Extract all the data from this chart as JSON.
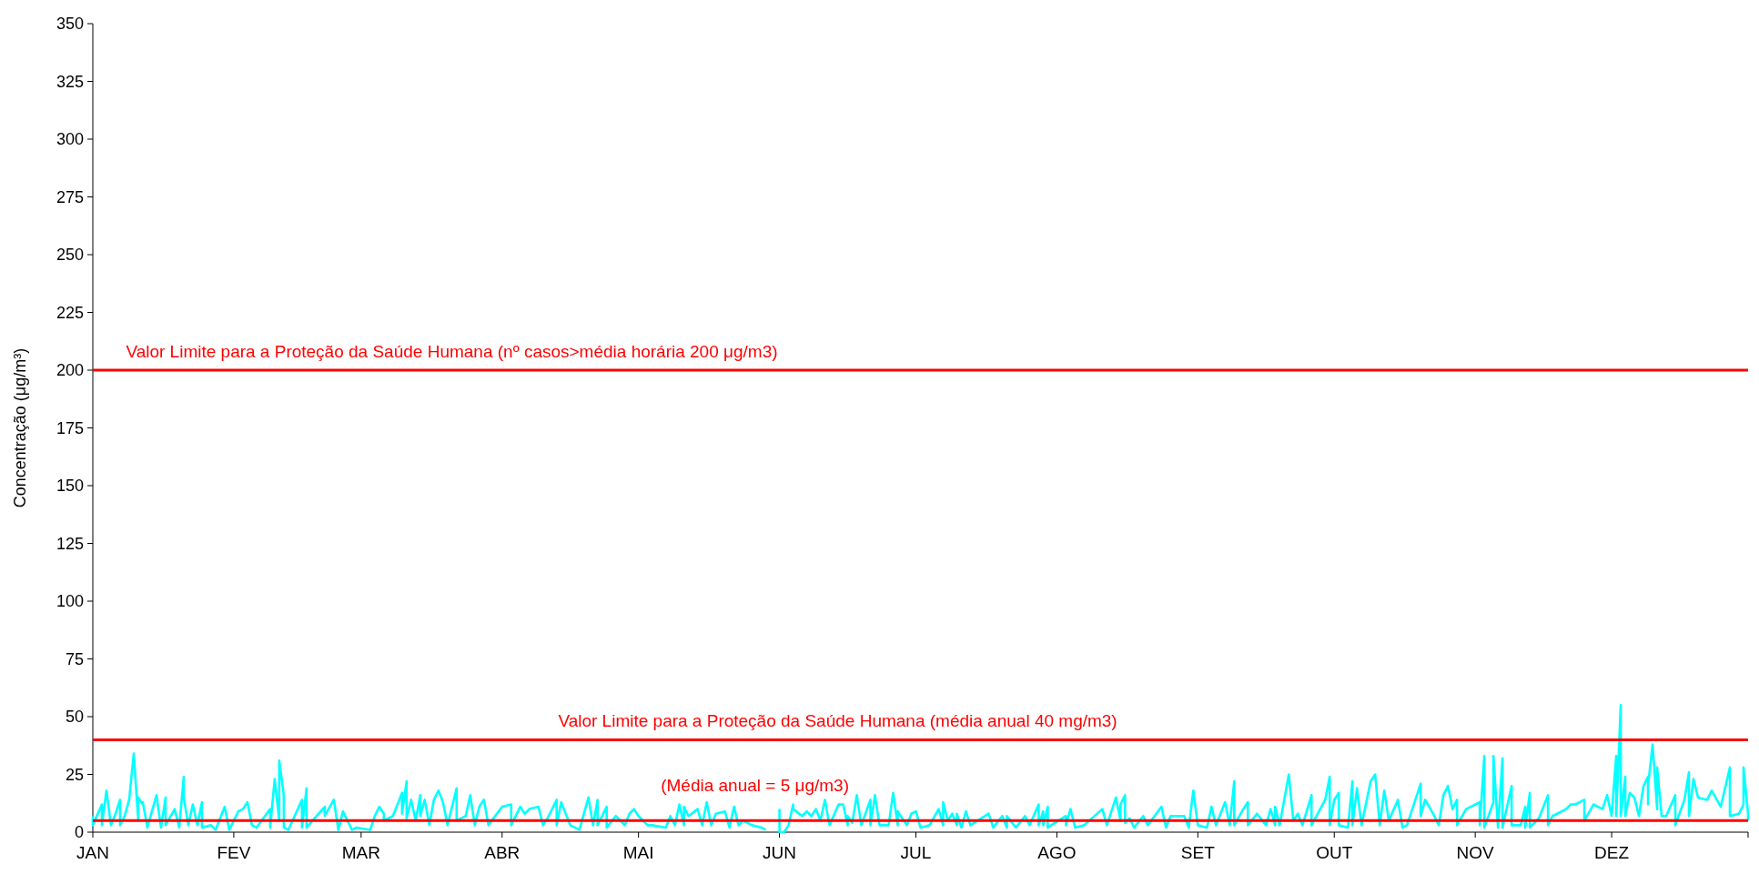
{
  "chart_data": {
    "type": "line",
    "ylabel": "Concentração (μg/m³)",
    "xlim": [
      "--01-01",
      "--12-31"
    ],
    "ylim": [
      0,
      350
    ],
    "xticks": [
      {
        "value": "--01-01",
        "label": "JAN"
      },
      {
        "value": "--02-01",
        "label": "FEV"
      },
      {
        "value": "--03-01",
        "label": "MAR"
      },
      {
        "value": "--04-01",
        "label": "ABR"
      },
      {
        "value": "--05-01",
        "label": "MAI"
      },
      {
        "value": "--06-01",
        "label": "JUN"
      },
      {
        "value": "--07-01",
        "label": "JUL"
      },
      {
        "value": "--08-01",
        "label": "AGO"
      },
      {
        "value": "--09-01",
        "label": "SET"
      },
      {
        "value": "--10-01",
        "label": "OUT"
      },
      {
        "value": "--11-01",
        "label": "NOV"
      },
      {
        "value": "--12-01",
        "label": "DEZ"
      },
      {
        "value": "--12-31",
        "label": null
      }
    ],
    "yticks": [
      0,
      25,
      50,
      75,
      100,
      125,
      150,
      175,
      200,
      225,
      250,
      275,
      300,
      325,
      350
    ],
    "grid": false,
    "marker": "none",
    "line_style": "solid",
    "series": [
      {
        "color": "#00ffff",
        "x": [
          "--01-01",
          "--01-01",
          "--01-03",
          "--01-03",
          "--01-04",
          "--01-05",
          "--01-06",
          "--01-07",
          "--01-07",
          "--01-08",
          "--01-09",
          "--01-10",
          "--01-11",
          "--01-11",
          "--01-12",
          "--01-12",
          "--01-13",
          "--01-15",
          "--01-16",
          "--01-17",
          "--01-17",
          "--01-19",
          "--01-20",
          "--01-21",
          "--01-21",
          "--01-22",
          "--01-23",
          "--01-24",
          "--01-25",
          "--01-25",
          "--01-27",
          "--01-28",
          "--01-30",
          "--01-31",
          "--02-02",
          "--02-03",
          "--02-04",
          "--02-05",
          "--02-06",
          "--02-09",
          "--02-09",
          "--02-10",
          "--02-11",
          "--02-11",
          "--02-12",
          "--02-12",
          "--02-13",
          "--02-16",
          "--02-16",
          "--02-17",
          "--02-17",
          "--02-21",
          "--02-21",
          "--02-23",
          "--02-24",
          "--02-25",
          "--02-27",
          "--02-28",
          "--03-03",
          "--03-04",
          "--03-05",
          "--03-06",
          "--03-06",
          "--03-08",
          "--03-09",
          "--03-10",
          "--03-10",
          "--03-11",
          "--03-11",
          "--03-12",
          "--03-13",
          "--03-14",
          "--03-14",
          "--03-15",
          "--03-16",
          "--03-17",
          "--03-18",
          "--03-19",
          "--03-20",
          "--03-22",
          "--03-22",
          "--03-24",
          "--03-25",
          "--03-26",
          "--03-27",
          "--03-28",
          "--03-29",
          "--04-01",
          "--04-03",
          "--04-03",
          "--04-05",
          "--04-06",
          "--04-07",
          "--04-09",
          "--04-10",
          "--04-11",
          "--04-13",
          "--04-13",
          "--04-14",
          "--04-16",
          "--04-18",
          "--04-20",
          "--04-21",
          "--04-22",
          "--04-22",
          "--04-24",
          "--04-24",
          "--04-26",
          "--04-28",
          "--04-29",
          "--04-30",
          "--05-01",
          "--05-03",
          "--05-04",
          "--05-07",
          "--05-08",
          "--05-09",
          "--05-10",
          "--05-11",
          "--05-11",
          "--05-12",
          "--05-14",
          "--05-15",
          "--05-16",
          "--05-17",
          "--05-18",
          "--05-20",
          "--05-21",
          "--05-22",
          "--05-23",
          "--05-24",
          "--05-26",
          "--05-28",
          "--05-29",
          "--05-30",
          "--06-01",
          "--06-01",
          "--06-02",
          "--06-03",
          "--06-04",
          "--06-04",
          "--06-06",
          "--06-07",
          "--06-08",
          "--06-09",
          "--06-10",
          "--06-11",
          "--06-12",
          "--06-14",
          "--06-15",
          "--06-16",
          "--06-16",
          "--06-17",
          "--06-18",
          "--06-19",
          "--06-21",
          "--06-21",
          "--06-22",
          "--06-23",
          "--06-25",
          "--06-26",
          "--06-27",
          "--06-27",
          "--06-29",
          "--06-30",
          "--07-01",
          "--07-02",
          "--07-04",
          "--07-06",
          "--07-07",
          "--07-07",
          "--07-08",
          "--07-09",
          "--07-10",
          "--07-10",
          "--07-11",
          "--07-12",
          "--07-13",
          "--07-17",
          "--07-18",
          "--07-20",
          "--07-21",
          "--07-21",
          "--07-23",
          "--07-25",
          "--07-26",
          "--07-28",
          "--07-28",
          "--07-29",
          "--07-29",
          "--07-30",
          "--07-30",
          "--08-03",
          "--08-03",
          "--08-04",
          "--08-05",
          "--08-07",
          "--08-11",
          "--08-12",
          "--08-14",
          "--08-15",
          "--08-15",
          "--08-16",
          "--08-16",
          "--08-17",
          "--08-18",
          "--08-20",
          "--08-21",
          "--08-24",
          "--08-25",
          "--08-26",
          "--08-29",
          "--08-30",
          "--08-31",
          "--09-01",
          "--09-03",
          "--09-04",
          "--09-05",
          "--09-07",
          "--09-08",
          "--09-09",
          "--09-09",
          "--09-11",
          "--09-12",
          "--09-12",
          "--09-14",
          "--09-16",
          "--09-17",
          "--09-18",
          "--09-18",
          "--09-19",
          "--09-21",
          "--09-22",
          "--09-23",
          "--09-24",
          "--09-26",
          "--09-26",
          "--09-29",
          "--09-30",
          "--09-30",
          "--10-01",
          "--10-02",
          "--10-02",
          "--10-04",
          "--10-05",
          "--10-05",
          "--10-06",
          "--10-07",
          "--10-09",
          "--10-10",
          "--10-11",
          "--10-12",
          "--10-13",
          "--10-15",
          "--10-16",
          "--10-17",
          "--10-20",
          "--10-20",
          "--10-21",
          "--10-23",
          "--10-24",
          "--10-25",
          "--10-26",
          "--10-27",
          "--10-28",
          "--10-28",
          "--10-30",
          "--10-31",
          "--11-02",
          "--11-02",
          "--11-03",
          "--11-03",
          "--11-05",
          "--11-05",
          "--11-06",
          "--11-07",
          "--11-07",
          "--11-09",
          "--11-09",
          "--11-11",
          "--11-12",
          "--11-12",
          "--11-13",
          "--11-13",
          "--11-15",
          "--11-17",
          "--11-17",
          "--11-18",
          "--11-21",
          "--11-22",
          "--11-23",
          "--11-25",
          "--11-25",
          "--11-27",
          "--11-29",
          "--11-30",
          "--12-01",
          "--12-02",
          "--12-02",
          "--12-03",
          "--12-03",
          "--12-04",
          "--12-04",
          "--12-05",
          "--12-06",
          "--12-07",
          "--12-08",
          "--12-09",
          "--12-09",
          "--12-09",
          "--12-10",
          "--12-11",
          "--12-11",
          "--12-12",
          "--12-13",
          "--12-15",
          "--12-15",
          "--12-17",
          "--12-18",
          "--12-18",
          "--12-19",
          "--12-20",
          "--12-22",
          "--12-23",
          "--12-25",
          "--12-27",
          "--12-27",
          "--12-29",
          "--12-30",
          "--12-30",
          "--12-31",
          "--12-31"
        ],
        "values": [
          7,
          3,
          12,
          3,
          18,
          3,
          8,
          14,
          3,
          7,
          14,
          34,
          5,
          15,
          12,
          13,
          2,
          16,
          2,
          15,
          3,
          10,
          2,
          24,
          15,
          3,
          12,
          3,
          13,
          2,
          3,
          1,
          11,
          1,
          9,
          10,
          13,
          3,
          2,
          10,
          2,
          23,
          5,
          31,
          16,
          2,
          1,
          14,
          2,
          19,
          2,
          11,
          7,
          14,
          1,
          9,
          1,
          2,
          1,
          7,
          11,
          8,
          5,
          7,
          12,
          17,
          8,
          22,
          6,
          14,
          5,
          16,
          7,
          14,
          3,
          14,
          18,
          13,
          3,
          19,
          5,
          7,
          16,
          3,
          11,
          14,
          3,
          11,
          12,
          3,
          11,
          8,
          10,
          11,
          3,
          6,
          14,
          3,
          13,
          3,
          1,
          15,
          3,
          14,
          3,
          11,
          2,
          7,
          3,
          8,
          10,
          7,
          3,
          3,
          2,
          7,
          3,
          12,
          3,
          11,
          7,
          10,
          3,
          13,
          3,
          8,
          9,
          2,
          11,
          3,
          5,
          3,
          2,
          1,
          null,
          10,
          0,
          0,
          3,
          12,
          10,
          7,
          9,
          7,
          10,
          5,
          14,
          3,
          12,
          12,
          3,
          7,
          4,
          16,
          3,
          14,
          3,
          16,
          3,
          3,
          17,
          3,
          9,
          3,
          8,
          9,
          2,
          3,
          10,
          3,
          13,
          5,
          8,
          3,
          8,
          2,
          9,
          3,
          8,
          2,
          7,
          2,
          7,
          2,
          7,
          3,
          12,
          3,
          9,
          3,
          11,
          2,
          7,
          3,
          10,
          2,
          3,
          10,
          3,
          15,
          5,
          12,
          16,
          4,
          6,
          2,
          7,
          3,
          11,
          2,
          7,
          7,
          2,
          18,
          3,
          2,
          11,
          3,
          13,
          3,
          22,
          3,
          10,
          13,
          3,
          8,
          3,
          10,
          3,
          11,
          3,
          25,
          5,
          8,
          3,
          16,
          3,
          14,
          24,
          3,
          14,
          17,
          3,
          2,
          22,
          3,
          19,
          3,
          22,
          25,
          3,
          18,
          5,
          14,
          2,
          3,
          21,
          7,
          14,
          7,
          3,
          16,
          20,
          10,
          14,
          3,
          10,
          11,
          13,
          3,
          33,
          2,
          13,
          33,
          2,
          32,
          2,
          20,
          3,
          3,
          11,
          2,
          17,
          2,
          6,
          16,
          3,
          7,
          10,
          12,
          12,
          14,
          5,
          12,
          10,
          16,
          7,
          33,
          7,
          55,
          7,
          24,
          7,
          17,
          15,
          7,
          20,
          24,
          12,
          20,
          38,
          10,
          28,
          7,
          7,
          16,
          3,
          14,
          26,
          7,
          23,
          15,
          14,
          18,
          11,
          28,
          7,
          8,
          12,
          28,
          8,
          5
        ]
      }
    ],
    "ref_lines": [
      {
        "axis": "y",
        "value": 200,
        "label": "Valor Limite para a Proteção da Saúde Humana (nº casos>média horária 200 μg/m3)",
        "color": "#ff0000"
      },
      {
        "axis": "y",
        "value": 40,
        "label": "Valor Limite para a Proteção da Saúde Humana (média anual 40 mg/m3)",
        "color": "#ff0000"
      },
      {
        "axis": "y",
        "value": 5,
        "label": "(Média anual = 5 μg/m3)",
        "color": "#ff0000"
      }
    ]
  }
}
